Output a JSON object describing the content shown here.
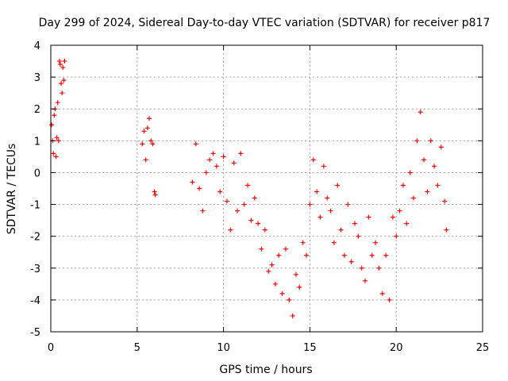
{
  "chart_data": {
    "type": "scatter",
    "title": "Day 299 of 2024, Sidereal Day-to-day VTEC variation (SDTVAR) for receiver p817",
    "xlabel": "GPS time / hours",
    "ylabel": "SDTVAR / TECUs",
    "xlim": [
      0,
      25
    ],
    "ylim": [
      -5,
      4
    ],
    "x_ticks": [
      0,
      5,
      10,
      15,
      20,
      25
    ],
    "y_ticks": [
      -5,
      -4,
      -3,
      -2,
      -1,
      0,
      1,
      2,
      3,
      4
    ],
    "grid": true,
    "marker": "plus",
    "color": "#ff0000",
    "series": [
      {
        "name": "SDTVAR",
        "x": [
          0.05,
          0.1,
          0.15,
          0.2,
          0.25,
          0.3,
          0.35,
          0.4,
          0.45,
          0.5,
          0.55,
          0.6,
          0.65,
          0.7,
          0.75,
          0.8,
          5.3,
          5.4,
          5.5,
          5.6,
          5.7,
          5.8,
          5.9,
          6.0,
          6.05,
          8.2,
          8.4,
          8.6,
          8.8,
          9.0,
          9.2,
          9.4,
          9.6,
          9.8,
          10.0,
          10.2,
          10.4,
          10.6,
          10.8,
          11.0,
          11.2,
          11.4,
          11.6,
          11.8,
          12.0,
          12.2,
          12.4,
          12.6,
          12.8,
          13.0,
          13.2,
          13.4,
          13.6,
          13.8,
          14.0,
          14.2,
          14.4,
          14.6,
          14.8,
          15.0,
          15.2,
          15.4,
          15.6,
          15.8,
          16.0,
          16.2,
          16.4,
          16.6,
          16.8,
          17.0,
          17.2,
          17.4,
          17.6,
          17.8,
          18.0,
          18.2,
          18.4,
          18.6,
          18.8,
          19.0,
          19.2,
          19.4,
          19.6,
          19.8,
          20.0,
          20.2,
          20.4,
          20.6,
          20.8,
          21.0,
          21.2,
          21.4,
          21.6,
          21.8,
          22.0,
          22.2,
          22.4,
          22.6,
          22.8,
          22.9
        ],
        "y": [
          1.5,
          1.0,
          0.6,
          1.8,
          2.0,
          0.5,
          1.1,
          2.2,
          1.0,
          3.5,
          3.4,
          2.8,
          2.5,
          3.3,
          2.9,
          3.5,
          0.9,
          1.3,
          0.4,
          1.4,
          1.7,
          1.0,
          0.9,
          -0.6,
          -0.7,
          -0.3,
          0.9,
          -0.5,
          -1.2,
          0.0,
          0.4,
          0.6,
          0.2,
          -0.6,
          0.5,
          -0.9,
          -1.8,
          0.3,
          -1.2,
          0.6,
          -1.0,
          -0.4,
          -1.5,
          -0.8,
          -1.6,
          -2.4,
          -1.8,
          -3.1,
          -2.9,
          -3.5,
          -2.6,
          -3.8,
          -2.4,
          -4.0,
          -4.5,
          -3.2,
          -3.6,
          -2.2,
          -2.6,
          -1.0,
          0.4,
          -0.6,
          -1.4,
          0.2,
          -0.8,
          -1.2,
          -2.2,
          -0.4,
          -1.8,
          -2.6,
          -1.0,
          -2.8,
          -1.6,
          -2.0,
          -3.0,
          -3.4,
          -1.4,
          -2.6,
          -2.2,
          -3.0,
          -3.8,
          -2.6,
          -4.0,
          -1.4,
          -2.0,
          -1.2,
          -0.4,
          -1.6,
          0.0,
          -0.8,
          1.0,
          1.9,
          0.4,
          -0.6,
          1.0,
          0.2,
          -0.4,
          0.8,
          -0.9,
          -1.8
        ]
      }
    ]
  }
}
